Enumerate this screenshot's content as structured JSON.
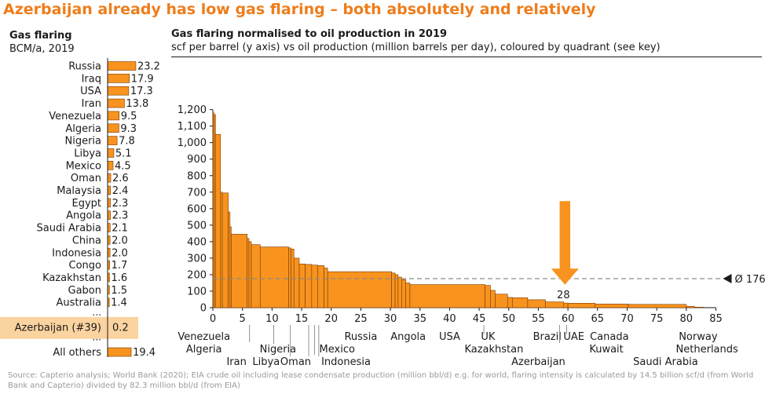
{
  "title": "Azerbaijan already has low gas flaring – both absolutely and relatively",
  "colors": {
    "title": "#ee7d1b",
    "bar_fill": "#f7931e",
    "bar_stroke": "#7a3a00",
    "highlight": "#fbd3a0",
    "text": "#1a1a1a",
    "source": "#9a9a9a"
  },
  "left_panel": {
    "heading": "Gas flaring",
    "subheading": "BCM/a, 2019"
  },
  "right_panel": {
    "heading": "Gas flaring normalised to oil production in 2019",
    "subheading": "scf per barrel (y axis) vs oil production (million barrels per day), coloured by quadrant (see key)"
  },
  "marker": {
    "arrow_label": "28",
    "average_label": "Ø 176",
    "average_value": 176,
    "arrow_x": 59.5
  },
  "source": "Source: Capterio analysis; World Bank (2020); EIA crude oil including lease condensate production (million bbl/d) e.g. for world, flaring intensity is calculated by 14.5 billion scf/d (from World Bank and Capterio) divided by 82.3 million bbl/d (from EIA)",
  "chart_data": [
    {
      "type": "bar",
      "orientation": "horizontal",
      "title": "Gas flaring",
      "subtitle": "BCM/a, 2019",
      "categories": [
        "Russia",
        "Iraq",
        "USA",
        "Iran",
        "Venezuela",
        "Algeria",
        "Nigeria",
        "Libya",
        "Mexico",
        "Oman",
        "Malaysia",
        "Egypt",
        "Angola",
        "Saudi Arabia",
        "China",
        "Indonesia",
        "Congo",
        "Kazakhstan",
        "Gabon",
        "Australia",
        "...",
        "Azerbaijan (#39)",
        "...",
        "All others"
      ],
      "values": [
        23.2,
        17.9,
        17.3,
        13.8,
        9.5,
        9.3,
        7.8,
        5.1,
        4.5,
        2.6,
        2.4,
        2.3,
        2.3,
        2.1,
        2.0,
        2.0,
        1.7,
        1.6,
        1.5,
        1.4,
        null,
        0.2,
        null,
        19.4
      ],
      "value_labels": [
        "23.2",
        "17.9",
        "17.3",
        "13.8",
        "9.5",
        "9.3",
        "7.8",
        "5.1",
        "4.5",
        "2.6",
        "2.4",
        "2.3",
        "2.3",
        "2.1",
        "2.0",
        "2.0",
        "1.7",
        "1.6",
        "1.5",
        "1.4",
        "",
        "0.2",
        "",
        "19.4"
      ],
      "highlight": "Azerbaijan (#39)"
    },
    {
      "type": "bar",
      "variant": "marimekko",
      "title": "Gas flaring normalised to oil production in 2019",
      "subtitle": "scf per barrel (y axis) vs oil production (million barrels per day), coloured by quadrant (see key)",
      "xlim": [
        0,
        85
      ],
      "ylim": [
        0,
        1200
      ],
      "x_ticks": [
        "0",
        "5",
        "10",
        "15",
        "20",
        "25",
        "30",
        "35",
        "40",
        "45",
        "50",
        "55",
        "60",
        "65",
        "70",
        "75",
        "80",
        "85"
      ],
      "y_ticks": [
        "0",
        "100",
        "200",
        "300",
        "400",
        "500",
        "600",
        "700",
        "800",
        "900",
        "1,000",
        "1,100",
        "1,200"
      ],
      "segments": [
        {
          "start": 0.0,
          "width": 0.2,
          "value": 1180
        },
        {
          "start": 0.2,
          "width": 0.25,
          "value": 1170
        },
        {
          "start": 0.45,
          "width": 0.85,
          "value": 1050
        },
        {
          "start": 1.3,
          "width": 0.3,
          "value": 700
        },
        {
          "start": 1.6,
          "width": 1.0,
          "value": 695
        },
        {
          "start": 2.6,
          "width": 0.3,
          "value": 580
        },
        {
          "start": 2.9,
          "width": 0.2,
          "value": 490
        },
        {
          "start": 3.1,
          "width": 2.7,
          "value": 445
        },
        {
          "start": 5.8,
          "width": 0.3,
          "value": 420
        },
        {
          "start": 6.1,
          "width": 0.4,
          "value": 400
        },
        {
          "start": 6.5,
          "width": 1.5,
          "value": 382
        },
        {
          "start": 8.0,
          "width": 4.8,
          "value": 368
        },
        {
          "start": 12.8,
          "width": 0.4,
          "value": 362
        },
        {
          "start": 13.2,
          "width": 0.5,
          "value": 355
        },
        {
          "start": 13.7,
          "width": 0.9,
          "value": 300
        },
        {
          "start": 14.6,
          "width": 1.0,
          "value": 265
        },
        {
          "start": 15.6,
          "width": 1.1,
          "value": 262
        },
        {
          "start": 16.7,
          "width": 1.0,
          "value": 258
        },
        {
          "start": 17.7,
          "width": 1.1,
          "value": 255
        },
        {
          "start": 18.8,
          "width": 0.6,
          "value": 240
        },
        {
          "start": 19.4,
          "width": 10.8,
          "value": 218
        },
        {
          "start": 30.2,
          "width": 0.6,
          "value": 210
        },
        {
          "start": 30.8,
          "width": 0.5,
          "value": 200
        },
        {
          "start": 31.3,
          "width": 0.6,
          "value": 185
        },
        {
          "start": 31.9,
          "width": 0.7,
          "value": 170
        },
        {
          "start": 32.6,
          "width": 0.7,
          "value": 150
        },
        {
          "start": 33.3,
          "width": 12.7,
          "value": 140
        },
        {
          "start": 46.0,
          "width": 0.9,
          "value": 135
        },
        {
          "start": 46.9,
          "width": 0.8,
          "value": 105
        },
        {
          "start": 47.7,
          "width": 2.1,
          "value": 82
        },
        {
          "start": 49.8,
          "width": 0.8,
          "value": 62
        },
        {
          "start": 50.6,
          "width": 2.6,
          "value": 60
        },
        {
          "start": 53.2,
          "width": 3.0,
          "value": 48
        },
        {
          "start": 56.2,
          "width": 3.1,
          "value": 35
        },
        {
          "start": 59.3,
          "width": 0.7,
          "value": 28
        },
        {
          "start": 60.0,
          "width": 4.6,
          "value": 27
        },
        {
          "start": 64.6,
          "width": 5.6,
          "value": 22
        },
        {
          "start": 70.2,
          "width": 9.8,
          "value": 20
        },
        {
          "start": 80.0,
          "width": 1.4,
          "value": 8
        },
        {
          "start": 81.4,
          "width": 1.6,
          "value": 3
        }
      ],
      "series_labels": {
        "row1": [
          {
            "text": "Venezuela",
            "x": -1.5
          },
          {
            "text": "Russia",
            "x": 25
          },
          {
            "text": "Angola",
            "x": 33
          },
          {
            "text": "USA",
            "x": 40
          },
          {
            "text": "UK",
            "x": 46.5
          },
          {
            "text": "Brazil",
            "x": 56.5
          },
          {
            "text": "UAE",
            "x": 61
          },
          {
            "text": "Canada",
            "x": 67
          },
          {
            "text": "Norway",
            "x": 82
          }
        ],
        "row2": [
          {
            "text": "Algeria",
            "x": -1.5
          },
          {
            "text": "Nigeria",
            "x": 11
          },
          {
            "text": "Mexico",
            "x": 21
          },
          {
            "text": "Kazakhstan",
            "x": 47.5
          },
          {
            "text": "Kuwait",
            "x": 66.5
          },
          {
            "text": "Netherlands",
            "x": 83.5
          }
        ],
        "row3": [
          {
            "text": "Iran",
            "x": 4
          },
          {
            "text": "Libya",
            "x": 9
          },
          {
            "text": "Oman",
            "x": 14
          },
          {
            "text": "Indonesia",
            "x": 22.5
          },
          {
            "text": "Azerbaijan",
            "x": 55
          },
          {
            "text": "Saudi Arabia",
            "x": 76.5
          }
        ]
      },
      "reference_line": {
        "value": 176,
        "label": "Ø 176"
      }
    }
  ]
}
